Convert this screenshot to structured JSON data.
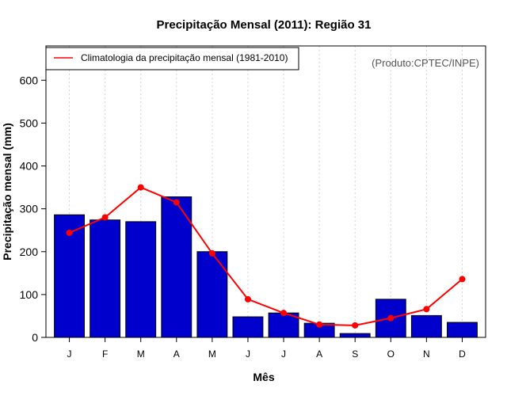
{
  "chart_data": {
    "type": "bar",
    "title": "Precipitação Mensal (2011): Região 31",
    "xlabel": "Mês",
    "ylabel": "Precipitação mensal (mm)",
    "ylim": [
      0,
      680
    ],
    "yticks": [
      0,
      100,
      200,
      300,
      400,
      500,
      600
    ],
    "categories": [
      "J",
      "F",
      "M",
      "A",
      "M",
      "J",
      "J",
      "A",
      "S",
      "O",
      "N",
      "D"
    ],
    "series": [
      {
        "name": "Precipitação mensal 2011",
        "type": "bar",
        "color": "#0000cc",
        "values": [
          286,
          274,
          270,
          328,
          200,
          48,
          57,
          33,
          9,
          89,
          51,
          35
        ]
      },
      {
        "name": "Climatologia da precipitação mensal (1981-2010)",
        "type": "line",
        "color": "#ff0000",
        "values": [
          244,
          280,
          350,
          315,
          196,
          89,
          57,
          30,
          28,
          45,
          66,
          136
        ]
      }
    ],
    "legend": {
      "position": "top-left",
      "entries": [
        "Climatologia da precipitação mensal (1981-2010)"
      ]
    },
    "grid": "vertical dotted",
    "annotation": "(Produto:CPTEC/INPE)"
  }
}
